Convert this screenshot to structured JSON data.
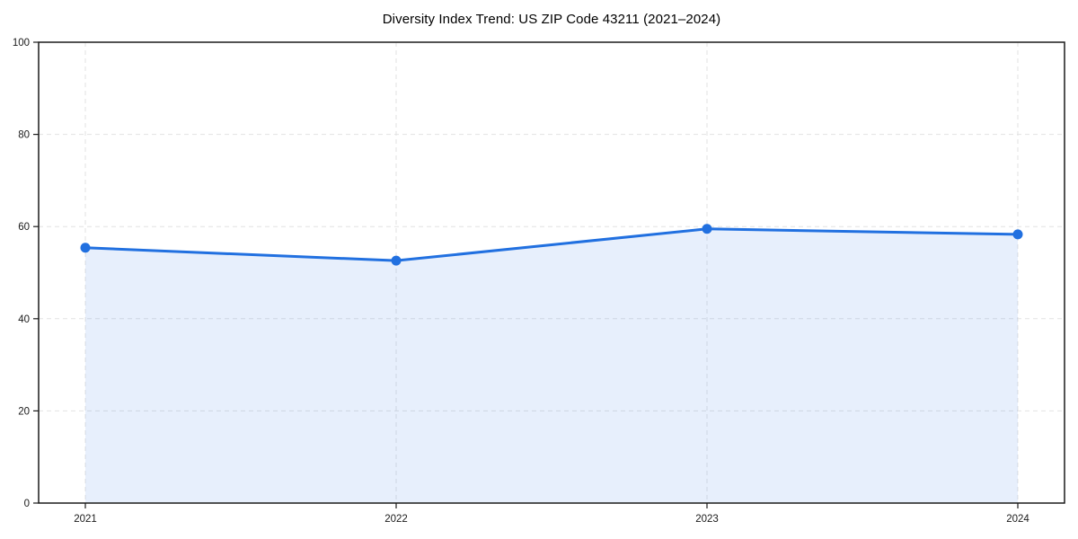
{
  "title": "Diversity Index Trend: US ZIP Code 43211 (2021–2024)",
  "chart_data": {
    "type": "area",
    "title": "Diversity Index Trend: US ZIP Code 43211 (2021–2024)",
    "categories": [
      "2021",
      "2022",
      "2023",
      "2024"
    ],
    "series": [
      {
        "name": "Diversity Index",
        "values": [
          55.4,
          52.6,
          59.5,
          58.3
        ]
      }
    ],
    "xlabel": "",
    "ylabel": "",
    "ylim": [
      0,
      100
    ],
    "yticks": [
      0,
      20,
      40,
      60,
      80,
      100
    ],
    "grid": true,
    "grid_style": "dashed",
    "legend_position": "none",
    "colors": {
      "line": "#2170e0",
      "marker": "#2170e0",
      "fill": "rgba(33, 112, 224, 0.11)",
      "grid": "#e2e2e2",
      "spine": "#1a1a1a",
      "tick_text": "#1a1a1a",
      "title_text": "#000000",
      "background": "#ffffff"
    }
  }
}
